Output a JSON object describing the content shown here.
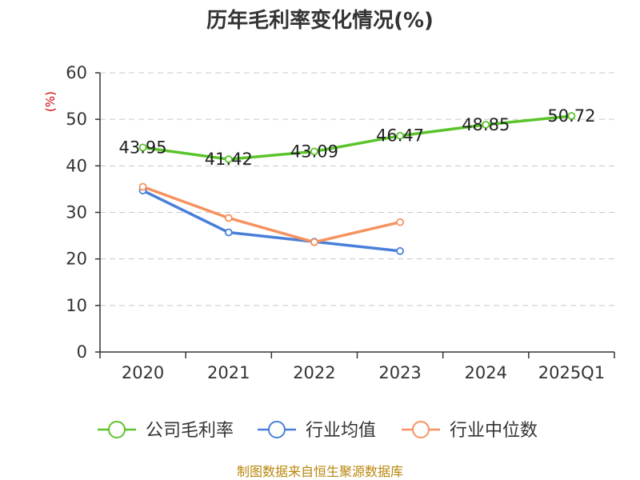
{
  "chart_data": {
    "type": "line",
    "title": "历年毛利率变化情况(%)",
    "ylabel": "(%)",
    "xlabel": "",
    "categories": [
      "2020",
      "2021",
      "2022",
      "2023",
      "2024",
      "2025Q1"
    ],
    "ylim": [
      0,
      60
    ],
    "yticks": [
      0,
      10,
      20,
      30,
      40,
      50,
      60
    ],
    "grid": true,
    "legend_position": "bottom",
    "series": [
      {
        "name": "公司毛利率",
        "values": [
          43.95,
          41.42,
          43.09,
          46.47,
          48.85,
          50.72
        ],
        "labels": [
          "43.95",
          "41.42",
          "43.09",
          "46.47",
          "48.85",
          "50.72"
        ],
        "color": "#5bc42b"
      },
      {
        "name": "行业均值",
        "values": [
          34.7,
          25.7,
          23.7,
          21.7,
          null,
          null
        ],
        "color": "#4a7fd9"
      },
      {
        "name": "行业中位数",
        "values": [
          35.5,
          28.8,
          23.6,
          27.9,
          null,
          null
        ],
        "color": "#f59260"
      }
    ]
  },
  "source": "制图数据来自恒生聚源数据库"
}
